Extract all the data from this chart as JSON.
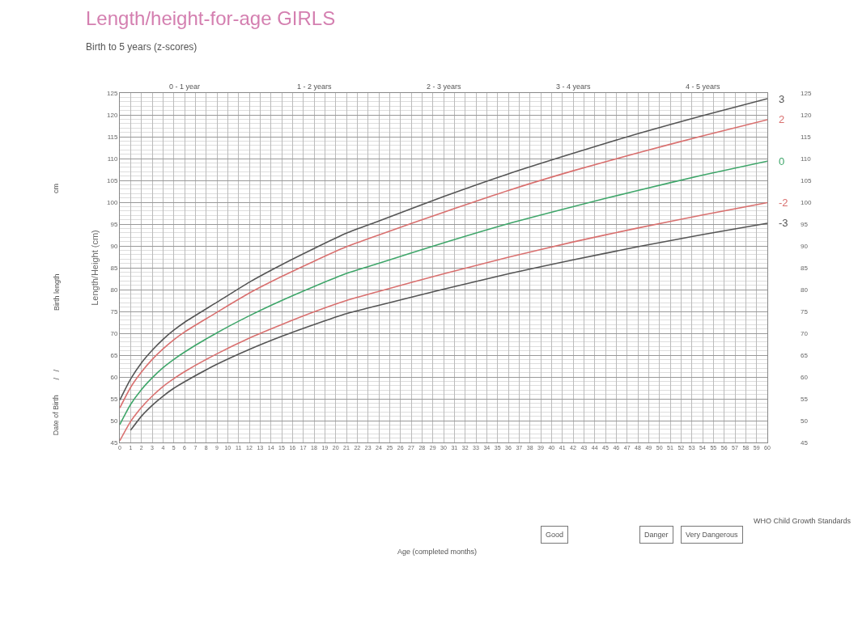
{
  "chart_data": {
    "type": "line",
    "title": "Length/height-for-age GIRLS",
    "subtitle": "Birth to 5 years (z-scores)",
    "ylabel": "Length/Height (cm)",
    "x": [
      0,
      1,
      2,
      3,
      4,
      5,
      6,
      9,
      12,
      15,
      18,
      21,
      24,
      30,
      36,
      42,
      48,
      54,
      60
    ],
    "series": [
      {
        "name": "3",
        "color": "#555555",
        "values": [
          54.7,
          59.5,
          63.2,
          66.1,
          68.6,
          70.7,
          72.5,
          77.1,
          81.7,
          85.7,
          89.4,
          92.9,
          95.7,
          101.3,
          106.5,
          111.2,
          115.7,
          119.8,
          123.7
        ]
      },
      {
        "name": "2",
        "color": "#d9706f",
        "values": [
          52.9,
          57.6,
          61.1,
          64.0,
          66.4,
          68.5,
          70.3,
          74.8,
          79.2,
          83.0,
          86.5,
          89.8,
          92.5,
          97.7,
          102.7,
          107.2,
          111.3,
          115.2,
          118.9
        ]
      },
      {
        "name": "0",
        "color": "#3fa66a",
        "values": [
          49.1,
          53.7,
          57.1,
          59.8,
          62.1,
          64.0,
          65.7,
          70.1,
          74.0,
          77.5,
          80.7,
          83.7,
          86.0,
          90.7,
          95.1,
          99.0,
          102.7,
          106.2,
          109.4
        ]
      },
      {
        "name": "-2",
        "color": "#d9706f",
        "values": [
          45.4,
          49.8,
          53.0,
          55.6,
          57.8,
          59.6,
          61.2,
          65.3,
          68.9,
          72.0,
          74.9,
          77.5,
          79.6,
          83.6,
          87.4,
          90.9,
          94.1,
          97.1,
          99.9
        ]
      },
      {
        "name": "-3",
        "color": "#555555",
        "values": [
          null,
          47.8,
          51.0,
          53.5,
          55.6,
          57.4,
          58.9,
          62.9,
          66.3,
          69.3,
          72.0,
          74.5,
          76.4,
          80.1,
          83.6,
          86.8,
          89.8,
          92.6,
          95.2
        ]
      }
    ],
    "xlim": [
      0,
      60
    ],
    "xticks": [
      0,
      1,
      2,
      3,
      4,
      5,
      6,
      7,
      8,
      9,
      10,
      11,
      12,
      13,
      14,
      15,
      16,
      17,
      18,
      19,
      20,
      21,
      22,
      23,
      24,
      25,
      26,
      27,
      28,
      29,
      30,
      31,
      32,
      33,
      34,
      35,
      36,
      37,
      38,
      39,
      40,
      41,
      42,
      43,
      44,
      45,
      46,
      47,
      48,
      49,
      50,
      51,
      52,
      53,
      54,
      55,
      56,
      57,
      58,
      59,
      60
    ],
    "ylim": [
      45,
      125
    ],
    "yticks": [
      45,
      50,
      55,
      60,
      65,
      70,
      75,
      80,
      85,
      90,
      95,
      100,
      105,
      110,
      115,
      120,
      125
    ],
    "y2lim": [
      45,
      125
    ],
    "y2ticks": [
      45,
      50,
      55,
      60,
      65,
      70,
      75,
      80,
      85,
      90,
      95,
      100,
      105,
      110,
      115,
      120,
      125
    ],
    "grid": true,
    "legend": false,
    "marker": "none",
    "line_style": "solid",
    "annotations": [
      "0 - 1 year",
      "1 - 2 years",
      "2 - 3 years",
      "3 - 4 years",
      "4 - 5 years",
      "WHO Child Growth Standards",
      "Good",
      "Danger",
      "Very Dangerous",
      "cm",
      "Birth length",
      "/   /",
      "Date of Birth",
      "Age (completed months)"
    ]
  }
}
